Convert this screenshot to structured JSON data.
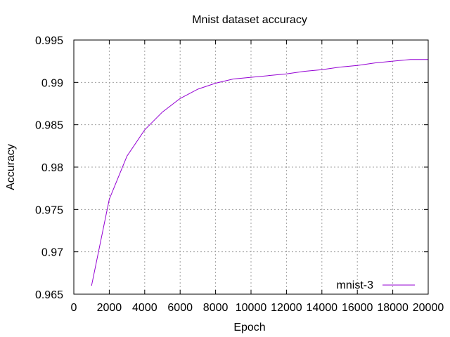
{
  "chart_data": {
    "type": "line",
    "title": "Mnist dataset accuracy",
    "xlabel": "Epoch",
    "ylabel": "Accuracy",
    "xlim": [
      0,
      20000
    ],
    "ylim": [
      0.965,
      0.995
    ],
    "x_ticks": [
      "0",
      "2000",
      "4000",
      "6000",
      "8000",
      "10000",
      "12000",
      "14000",
      "16000",
      "18000",
      "20000"
    ],
    "y_ticks": [
      "0.965",
      "0.97",
      "0.975",
      "0.98",
      "0.985",
      "0.99",
      "0.995"
    ],
    "grid": true,
    "legend_position": "bottom-right",
    "series": [
      {
        "name": "mnist-3",
        "color": "#9400d3",
        "x": [
          1000,
          2000,
          3000,
          4000,
          5000,
          6000,
          7000,
          8000,
          9000,
          10000,
          11000,
          12000,
          13000,
          14000,
          15000,
          16000,
          17000,
          18000,
          19000,
          20000
        ],
        "y": [
          0.966,
          0.9762,
          0.9813,
          0.9844,
          0.9865,
          0.9881,
          0.9892,
          0.9899,
          0.9904,
          0.9906,
          0.9908,
          0.991,
          0.9913,
          0.9915,
          0.9918,
          0.992,
          0.9923,
          0.9925,
          0.9927,
          0.9927
        ]
      }
    ]
  }
}
